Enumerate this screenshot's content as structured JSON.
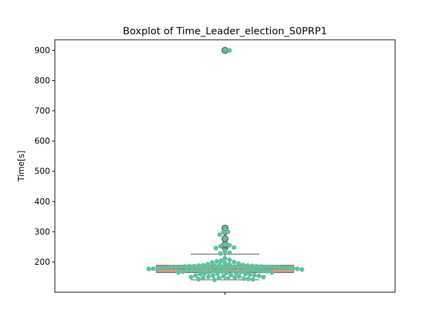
{
  "chart_data": {
    "type": "boxplot",
    "title": "Boxplot of Time_Leader_election_S0PRP1",
    "xlabel": "",
    "ylabel": "Time[s]",
    "ylim": [
      100,
      935
    ],
    "yticks": [
      200,
      300,
      400,
      500,
      600,
      700,
      800,
      900
    ],
    "grid": false,
    "legend": "none",
    "box": {
      "q1": 165,
      "median": 177,
      "q3": 189,
      "whisker_low": 141,
      "whisker_high": 226,
      "fliers": [
        248,
        258,
        277,
        300,
        312,
        900
      ]
    },
    "colors": {
      "box_fill": "#e1957b",
      "box_edge": "#6a6a6a",
      "flier_fill": "#6f9a8c",
      "swarm": "#5fc1a0"
    },
    "swarm_points": [
      900,
      900,
      312,
      300,
      298,
      290,
      277,
      258,
      255,
      252,
      248,
      246,
      235,
      230,
      228,
      212,
      207,
      204,
      202,
      200,
      198,
      196,
      195,
      193,
      192,
      190,
      190,
      189,
      188,
      188,
      187,
      187,
      186,
      186,
      186,
      185,
      185,
      185,
      184,
      184,
      184,
      183,
      183,
      183,
      182,
      182,
      182,
      181,
      181,
      180,
      180,
      180,
      179,
      179,
      178,
      178,
      178,
      177,
      177,
      176,
      176,
      175,
      175,
      174,
      174,
      173,
      173,
      172,
      172,
      171,
      170,
      170,
      169,
      168,
      168,
      167,
      166,
      165,
      165,
      164,
      163,
      162,
      161,
      160,
      160,
      158,
      157,
      156,
      155,
      155,
      154,
      153,
      152,
      151,
      150,
      150,
      149,
      148,
      147,
      146,
      145,
      144,
      143,
      142,
      141
    ]
  }
}
